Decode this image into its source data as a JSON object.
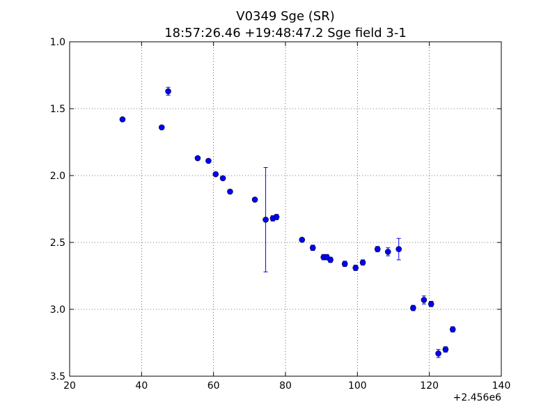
{
  "chart_data": {
    "type": "scatter",
    "title": "V0349 Sge (SR)",
    "subtitle": "18:57:26.46 +19:48:47.2 Sge field 3-1",
    "xlabel": "",
    "ylabel": "",
    "x_offset_label": "+2.456e6",
    "xlim": [
      20,
      140
    ],
    "ylim": [
      1.0,
      3.5
    ],
    "y_inverted": true,
    "x_ticks": [
      20,
      40,
      60,
      80,
      100,
      120,
      140
    ],
    "x_tick_labels": [
      "20",
      "40",
      "60",
      "80",
      "100",
      "120",
      "140"
    ],
    "y_ticks": [
      1.0,
      1.5,
      2.0,
      2.5,
      3.0,
      3.5
    ],
    "y_tick_labels": [
      "1.0",
      "1.5",
      "2.0",
      "2.5",
      "3.0",
      "3.5"
    ],
    "grid": true,
    "marker_color": "#0000ff",
    "series": [
      {
        "points": [
          {
            "x": 34.7,
            "y": 1.58,
            "err": 0.01
          },
          {
            "x": 45.6,
            "y": 1.64,
            "err": 0.01
          },
          {
            "x": 47.4,
            "y": 1.37,
            "err": 0.03
          },
          {
            "x": 55.6,
            "y": 1.87,
            "err": 0.01
          },
          {
            "x": 58.6,
            "y": 1.89,
            "err": 0.01
          },
          {
            "x": 60.6,
            "y": 1.99,
            "err": 0.01
          },
          {
            "x": 62.6,
            "y": 2.02,
            "err": 0.01
          },
          {
            "x": 64.6,
            "y": 2.12,
            "err": 0.01
          },
          {
            "x": 71.5,
            "y": 2.18,
            "err": 0.01
          },
          {
            "x": 74.5,
            "y": 2.33,
            "err": 0.39
          },
          {
            "x": 76.5,
            "y": 2.32,
            "err": 0.02
          },
          {
            "x": 77.5,
            "y": 2.31,
            "err": 0.02
          },
          {
            "x": 84.6,
            "y": 2.48,
            "err": 0.01
          },
          {
            "x": 87.6,
            "y": 2.54,
            "err": 0.02
          },
          {
            "x": 90.6,
            "y": 2.61,
            "err": 0.02
          },
          {
            "x": 91.5,
            "y": 2.61,
            "err": 0.02
          },
          {
            "x": 92.5,
            "y": 2.63,
            "err": 0.02
          },
          {
            "x": 96.5,
            "y": 2.66,
            "err": 0.02
          },
          {
            "x": 99.5,
            "y": 2.69,
            "err": 0.02
          },
          {
            "x": 101.5,
            "y": 2.65,
            "err": 0.02
          },
          {
            "x": 105.6,
            "y": 2.55,
            "err": 0.02
          },
          {
            "x": 108.5,
            "y": 2.57,
            "err": 0.03
          },
          {
            "x": 111.5,
            "y": 2.55,
            "err": 0.08
          },
          {
            "x": 115.5,
            "y": 2.99,
            "err": 0.02
          },
          {
            "x": 118.5,
            "y": 2.93,
            "err": 0.03
          },
          {
            "x": 120.5,
            "y": 2.96,
            "err": 0.02
          },
          {
            "x": 122.5,
            "y": 3.33,
            "err": 0.03
          },
          {
            "x": 124.5,
            "y": 3.3,
            "err": 0.02
          },
          {
            "x": 126.5,
            "y": 3.15,
            "err": 0.02
          }
        ]
      }
    ]
  }
}
